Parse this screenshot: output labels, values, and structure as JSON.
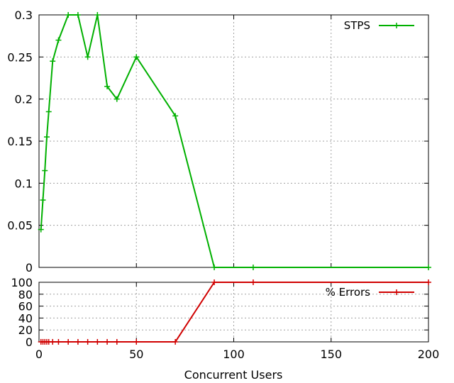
{
  "chart_data": [
    {
      "type": "line",
      "title": "",
      "xlabel": "Concurrent Users",
      "ylabel": "",
      "xlim": [
        0,
        200
      ],
      "ylim": [
        0,
        0.3
      ],
      "x_ticks": [
        0,
        50,
        100,
        150,
        200
      ],
      "y_ticks": [
        0,
        0.05,
        0.1,
        0.15,
        0.2,
        0.25,
        0.3
      ],
      "y_tick_labels": [
        "0",
        "0.05",
        "0.1",
        "0.15",
        "0.2",
        "0.25",
        "0.3"
      ],
      "grid": true,
      "legend_position": "top-right",
      "series": [
        {
          "name": "STPS",
          "color": "#00b000",
          "x": [
            1,
            2,
            3,
            4,
            5,
            7,
            10,
            15,
            20,
            25,
            30,
            35,
            40,
            50,
            70,
            90,
            110,
            200
          ],
          "y": [
            0.045,
            0.08,
            0.115,
            0.155,
            0.185,
            0.245,
            0.27,
            0.3,
            0.3,
            0.25,
            0.3,
            0.215,
            0.2,
            0.25,
            0.18,
            0,
            0,
            0
          ]
        }
      ]
    },
    {
      "type": "line",
      "title": "",
      "xlabel": "Concurrent Users",
      "ylabel": "",
      "xlim": [
        0,
        200
      ],
      "ylim": [
        0,
        100
      ],
      "x_ticks": [
        0,
        50,
        100,
        150,
        200
      ],
      "x_tick_labels": [
        "0",
        "50",
        "100",
        "150",
        "200"
      ],
      "y_ticks": [
        0,
        20,
        40,
        60,
        80,
        100
      ],
      "y_tick_labels": [
        "0",
        "20",
        "40",
        "60",
        "80",
        "100"
      ],
      "grid": true,
      "legend_position": "top-right",
      "series": [
        {
          "name": "% Errors",
          "color": "#d00000",
          "x": [
            1,
            2,
            3,
            4,
            5,
            7,
            10,
            15,
            20,
            25,
            30,
            35,
            40,
            50,
            70,
            90,
            110,
            200
          ],
          "y": [
            0,
            0,
            0,
            0,
            0,
            0,
            0,
            0,
            0,
            0,
            0,
            0,
            0,
            0,
            0,
            100,
            100,
            100
          ]
        }
      ]
    }
  ]
}
